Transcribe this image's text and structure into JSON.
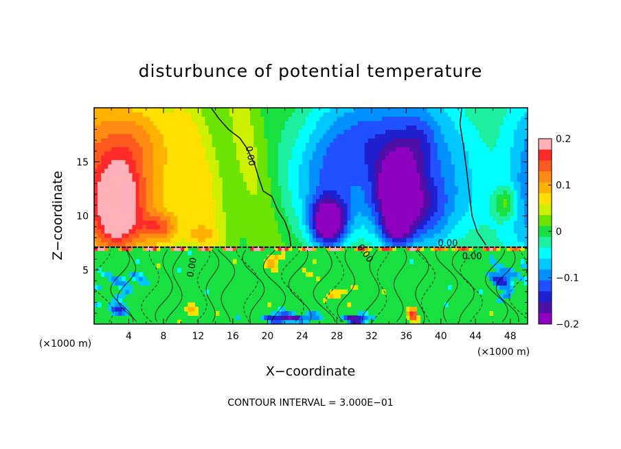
{
  "chart_data": {
    "type": "heatmap",
    "title": "disturbunce of potential temperature",
    "xlabel": "X−coordinate",
    "ylabel": "Z−coordinate",
    "x_unit_left": "(×1000 m)",
    "x_unit_right": "(×1000 m)",
    "footer": "CONTOUR INTERVAL = 3.000E−01",
    "xlim": [
      0,
      50
    ],
    "ylim": [
      0,
      20
    ],
    "x_ticks": [
      4,
      8,
      12,
      16,
      20,
      24,
      28,
      32,
      36,
      40,
      44,
      48
    ],
    "y_ticks": [
      5,
      10,
      15
    ],
    "colorbar": {
      "min": -0.2,
      "max": 0.2,
      "tick_values": [
        0.2,
        0.1,
        0,
        -0.1,
        -0.2
      ],
      "tick_labels": [
        "0.2",
        "0.1",
        "0",
        "−0.1",
        "−0.2"
      ],
      "colors": [
        "#ffb0b8",
        "#ff2a2a",
        "#ff5a1e",
        "#ff8a14",
        "#ffb000",
        "#ffe000",
        "#cdf000",
        "#6ae400",
        "#18e040",
        "#1cf0a0",
        "#00ffff",
        "#00c8ff",
        "#0090ff",
        "#2050ff",
        "#2020d0",
        "#5010a8",
        "#9000c0"
      ]
    },
    "contour_labels": [
      {
        "text": "0.00",
        "x": 17.7,
        "z": 15.5,
        "rotate": 80
      },
      {
        "text": "0.00",
        "x": 40.8,
        "z": 7.2,
        "rotate": 0
      },
      {
        "text": "0.00",
        "x": 43.6,
        "z": 6.0,
        "rotate": 0
      },
      {
        "text": "0.00",
        "x": 11.6,
        "z": 5.2,
        "rotate": -80
      },
      {
        "text": "0.00",
        "x": 31.0,
        "z": 6.4,
        "rotate": 55
      }
    ],
    "zero_contour": [
      [
        13.5,
        20
      ],
      [
        14.4,
        19
      ],
      [
        15.5,
        18
      ],
      [
        16.8,
        17.2
      ],
      [
        17.6,
        16.3
      ],
      [
        18.5,
        14.8
      ],
      [
        19.0,
        13.5
      ],
      [
        19.5,
        12.3
      ],
      [
        20.5,
        11.8
      ],
      [
        21.2,
        10.5
      ],
      [
        22.0,
        9.5
      ],
      [
        22.5,
        8.4
      ],
      [
        22.7,
        7.2
      ]
    ],
    "zero_contour_right": [
      [
        42.4,
        20
      ],
      [
        42.2,
        18.5
      ],
      [
        42.6,
        16.5
      ],
      [
        43.0,
        14
      ],
      [
        43.3,
        12
      ],
      [
        43.6,
        10
      ],
      [
        44.2,
        8.5
      ],
      [
        45.2,
        7.3
      ]
    ],
    "fields": {
      "upper_blobs": [
        {
          "x": 2.8,
          "z": 11.0,
          "sx": 2.6,
          "sz": 3.8,
          "v": 0.16
        },
        {
          "x": 2.3,
          "z": 9.6,
          "sx": 0.9,
          "sz": 1.1,
          "v": 0.07
        },
        {
          "x": 7.5,
          "z": 9.0,
          "sx": 2.2,
          "sz": 1.3,
          "v": 0.08
        },
        {
          "x": 12.0,
          "z": 8.3,
          "sx": 1.6,
          "sz": 0.8,
          "v": 0.05
        },
        {
          "x": 4.0,
          "z": 17.0,
          "sx": 4.0,
          "sz": 3.0,
          "v": 0.04
        },
        {
          "x": 27.0,
          "z": 9.3,
          "sx": 2.0,
          "sz": 2.2,
          "v": -0.21
        },
        {
          "x": 26.0,
          "z": 13.0,
          "sx": 4.0,
          "sz": 4.0,
          "v": -0.06
        },
        {
          "x": 35.0,
          "z": 12.0,
          "sx": 2.4,
          "sz": 4.0,
          "v": -0.17
        },
        {
          "x": 35.0,
          "z": 8.8,
          "sx": 1.6,
          "sz": 1.5,
          "v": -0.08
        },
        {
          "x": 30.0,
          "z": 17.0,
          "sx": 6.0,
          "sz": 3.5,
          "v": -0.05
        },
        {
          "x": 37.5,
          "z": 17.0,
          "sx": 2.0,
          "sz": 2.5,
          "v": -0.04
        },
        {
          "x": 38.5,
          "z": 10.5,
          "sx": 2.5,
          "sz": 3.5,
          "v": -0.05
        },
        {
          "x": 47.5,
          "z": 11.2,
          "sx": 1.4,
          "sz": 1.5,
          "v": 0.08
        },
        {
          "x": 47.0,
          "z": 15.0,
          "sx": 3.0,
          "sz": 4.0,
          "v": 0.03
        }
      ],
      "lower_blobs": [
        {
          "x": 28.2,
          "z": 3.0,
          "sx": 1.2,
          "sz": 1.0,
          "v": 0.08
        },
        {
          "x": 24.0,
          "z": 4.6,
          "sx": 1.0,
          "sz": 0.8,
          "v": 0.06
        },
        {
          "x": 20.5,
          "z": 6.0,
          "sx": 1.0,
          "sz": 0.8,
          "v": 0.1
        },
        {
          "x": 22.5,
          "z": 0.6,
          "sx": 3.0,
          "sz": 0.5,
          "v": -0.18
        },
        {
          "x": 30.5,
          "z": 0.5,
          "sx": 2.0,
          "sz": 0.5,
          "v": -0.15
        },
        {
          "x": 36.8,
          "z": 0.9,
          "sx": 0.6,
          "sz": 0.9,
          "v": 0.12
        },
        {
          "x": 47.5,
          "z": 4.2,
          "sx": 1.8,
          "sz": 1.5,
          "v": -0.13
        },
        {
          "x": 3.5,
          "z": 4.0,
          "sx": 2.0,
          "sz": 1.0,
          "v": -0.1
        },
        {
          "x": 2.2,
          "z": 1.5,
          "sx": 1.6,
          "sz": 0.8,
          "v": -0.12
        },
        {
          "x": 12.0,
          "z": 1.2,
          "sx": 1.2,
          "sz": 0.6,
          "v": 0.1
        }
      ]
    }
  }
}
